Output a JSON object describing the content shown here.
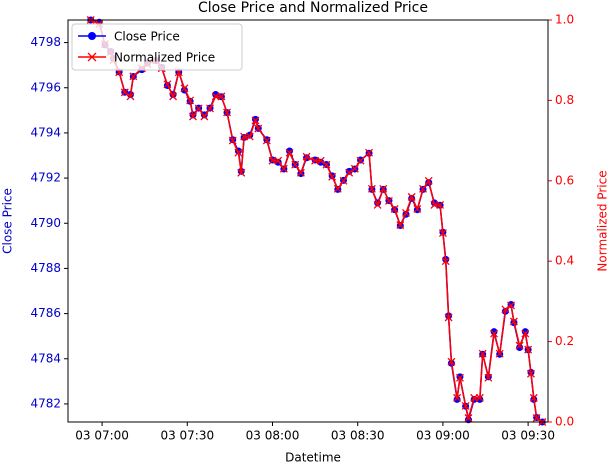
{
  "chart_data": {
    "type": "line",
    "title": "Close Price and Normalized Price",
    "x_label": "Datetime",
    "y_label": "Close Price",
    "y2_label": "Normalized Price",
    "y_label_color": "#0000cc",
    "y2_label_color": "#ff0000",
    "legend": "upper left",
    "grid": false,
    "x": [
      "03 06:56",
      "03 06:59",
      "03 07:01",
      "03 07:03",
      "03 07:04",
      "03 07:06",
      "03 07:08",
      "03 07:10",
      "03 07:11",
      "03 07:14",
      "03 07:16",
      "03 07:19",
      "03 07:21",
      "03 07:23",
      "03 07:25",
      "03 07:27",
      "03 07:29",
      "03 07:31",
      "03 07:32",
      "03 07:34",
      "03 07:36",
      "03 07:38",
      "03 07:40",
      "03 07:42",
      "03 07:44",
      "03 07:46",
      "03 07:48",
      "03 07:49",
      "03 07:50",
      "03 07:52",
      "03 07:54",
      "03 07:55",
      "03 07:58",
      "03 08:00",
      "03 08:02",
      "03 08:04",
      "03 08:06",
      "03 08:08",
      "03 08:10",
      "03 08:12",
      "03 08:15",
      "03 08:17",
      "03 08:19",
      "03 08:21",
      "03 08:23",
      "03 08:25",
      "03 08:27",
      "03 08:29",
      "03 08:31",
      "03 08:34",
      "03 08:35",
      "03 08:37",
      "03 08:39",
      "03 08:41",
      "03 08:43",
      "03 08:45",
      "03 08:47",
      "03 08:49",
      "03 08:51",
      "03 08:53",
      "03 08:55",
      "03 08:57",
      "03 08:59",
      "03 09:00",
      "03 09:01",
      "03 09:02",
      "03 09:03",
      "03 09:05",
      "03 09:06",
      "03 09:08",
      "03 09:09",
      "03 09:11",
      "03 09:13",
      "03 09:14",
      "03 09:16",
      "03 09:18",
      "03 09:20",
      "03 09:22",
      "03 09:24",
      "03 09:25",
      "03 09:27",
      "03 09:29",
      "03 09:30",
      "03 09:31",
      "03 09:32",
      "03 09:33",
      "03 09:35"
    ],
    "series": [
      {
        "name": "Close Price",
        "color": "#0000ff",
        "marker": "circle",
        "axis": "y",
        "values": [
          4799.0,
          4798.9,
          4797.9,
          4797.6,
          4797.3,
          4796.7,
          4795.8,
          4795.7,
          4796.5,
          4796.8,
          4797.1,
          4797.2,
          4796.9,
          4796.1,
          4795.7,
          4796.7,
          4795.9,
          4795.4,
          4794.8,
          4795.1,
          4794.8,
          4795.1,
          4795.7,
          4795.6,
          4794.9,
          4793.7,
          4793.2,
          4792.3,
          4793.8,
          4793.9,
          4794.6,
          4794.2,
          4793.7,
          4792.8,
          4792.7,
          4792.4,
          4793.2,
          4792.6,
          4792.2,
          4792.9,
          4792.8,
          4792.7,
          4792.6,
          4792.1,
          4791.5,
          4791.9,
          4792.3,
          4792.4,
          4792.8,
          4793.1,
          4791.5,
          4790.9,
          4791.5,
          4791.0,
          4790.6,
          4789.9,
          4790.4,
          4791.1,
          4790.6,
          4791.5,
          4791.8,
          4790.9,
          4790.8,
          4789.6,
          4788.4,
          4785.9,
          4783.8,
          4782.2,
          4783.2,
          4781.9,
          4781.3,
          4782.2,
          4782.2,
          4784.2,
          4783.2,
          4785.2,
          4784.2,
          4786.1,
          4786.4,
          4785.6,
          4784.5,
          4785.2,
          4784.4,
          4783.4,
          4782.2,
          4781.4,
          4781.2
        ]
      },
      {
        "name": "Normalized Price",
        "color": "#ff0000",
        "marker": "x",
        "axis": "y2",
        "values": [
          1.0,
          0.99,
          0.94,
          0.92,
          0.9,
          0.87,
          0.82,
          0.81,
          0.86,
          0.88,
          0.89,
          0.9,
          0.88,
          0.84,
          0.81,
          0.87,
          0.83,
          0.8,
          0.76,
          0.78,
          0.76,
          0.78,
          0.81,
          0.81,
          0.77,
          0.7,
          0.67,
          0.62,
          0.71,
          0.71,
          0.75,
          0.73,
          0.7,
          0.65,
          0.65,
          0.63,
          0.67,
          0.64,
          0.62,
          0.66,
          0.65,
          0.65,
          0.64,
          0.61,
          0.58,
          0.6,
          0.62,
          0.63,
          0.65,
          0.67,
          0.58,
          0.54,
          0.58,
          0.55,
          0.53,
          0.49,
          0.52,
          0.56,
          0.53,
          0.58,
          0.6,
          0.54,
          0.54,
          0.47,
          0.4,
          0.26,
          0.15,
          0.06,
          0.11,
          0.04,
          0.01,
          0.06,
          0.06,
          0.17,
          0.11,
          0.22,
          0.17,
          0.28,
          0.29,
          0.25,
          0.19,
          0.22,
          0.18,
          0.12,
          0.06,
          0.01,
          0.0
        ]
      }
    ],
    "xlim": [
      "03 06:48",
      "03 09:37"
    ],
    "xticks": [
      "03 07:00",
      "03 07:30",
      "03 08:00",
      "03 08:30",
      "03 09:00",
      "03 09:30"
    ],
    "ylim": [
      4781.2,
      4799.0
    ],
    "yticks": [
      4782,
      4784,
      4786,
      4788,
      4790,
      4792,
      4794,
      4796,
      4798
    ],
    "y2lim": [
      0,
      1
    ],
    "y2ticks": [
      {
        "value": 0,
        "label": "0.0"
      },
      {
        "value": 0.2,
        "label": "0.2"
      },
      {
        "value": 0.4,
        "label": "0.4"
      },
      {
        "value": 0.6,
        "label": "0.6"
      },
      {
        "value": 0.8,
        "label": "0.8"
      },
      {
        "value": 1,
        "label": "1.0"
      }
    ]
  }
}
